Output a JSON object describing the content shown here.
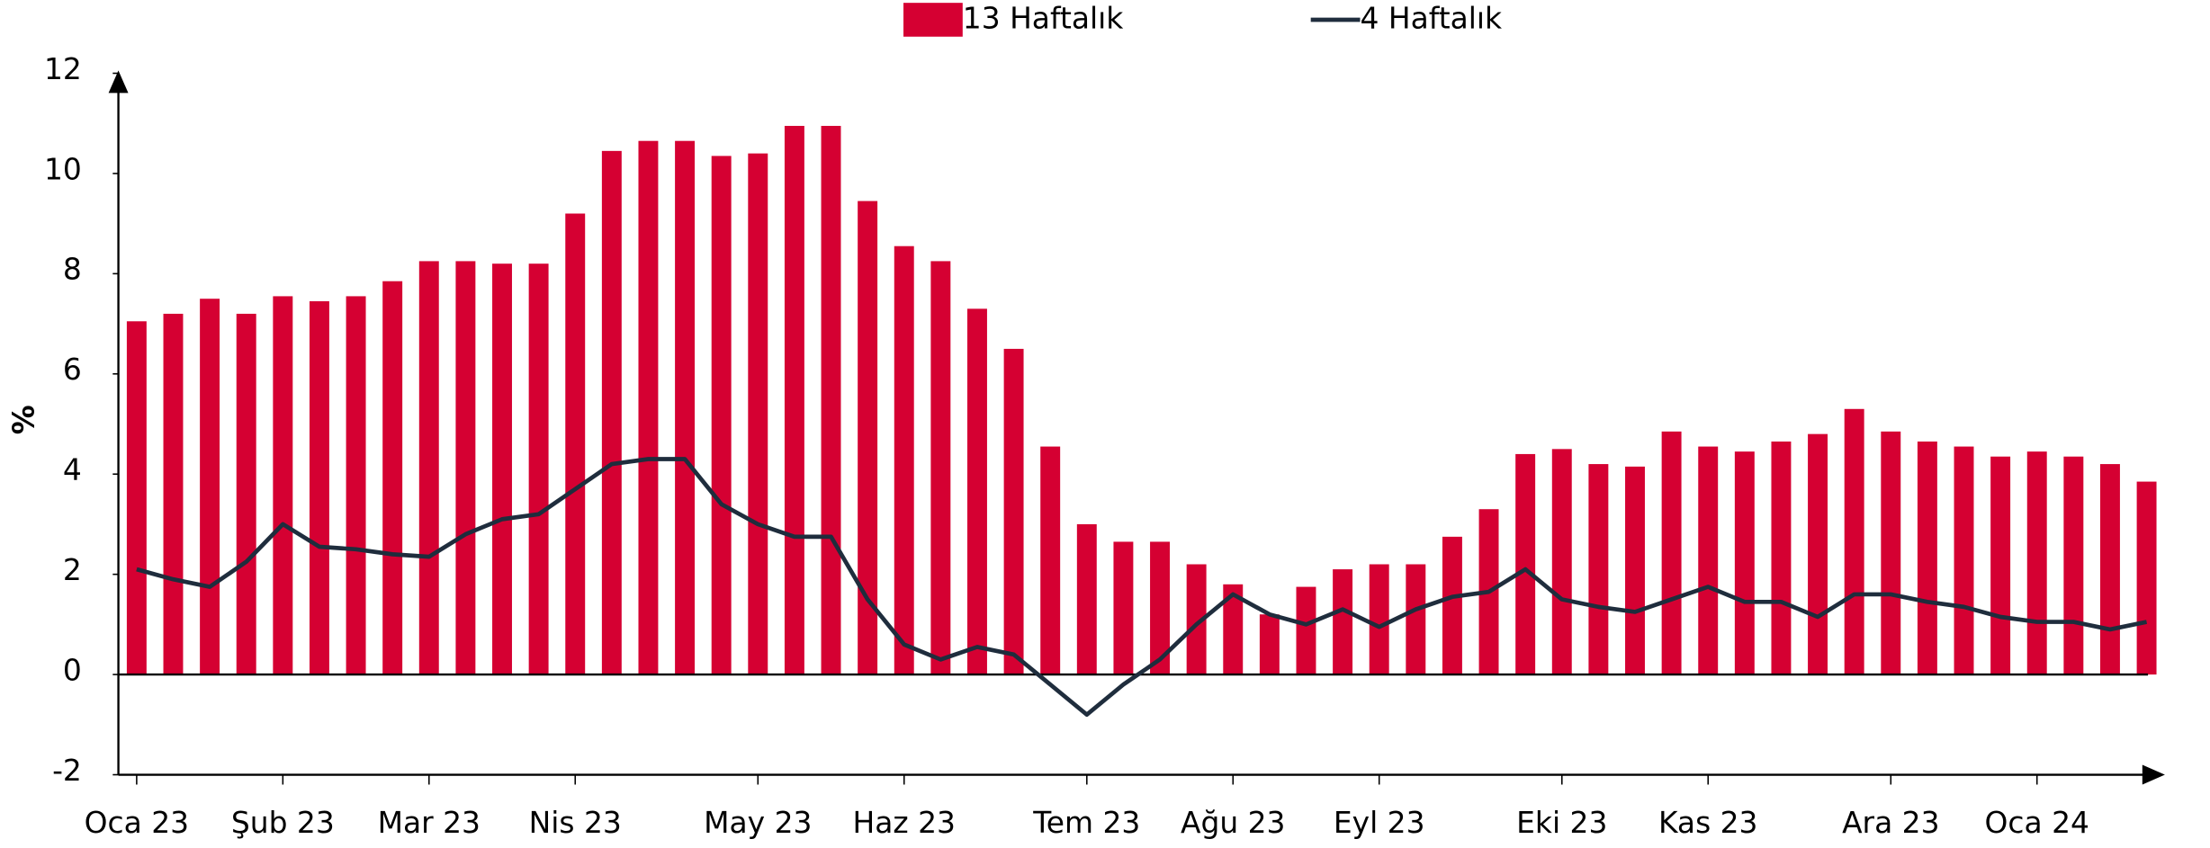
{
  "chart_data": {
    "type": "bar_line",
    "y_label": "%",
    "categories": [
      "Oca 23",
      null,
      null,
      null,
      "Şub 23",
      null,
      null,
      null,
      "Mar 23",
      null,
      null,
      null,
      "Nis 23",
      null,
      null,
      null,
      null,
      "May 23",
      null,
      null,
      null,
      "Haz 23",
      null,
      null,
      null,
      null,
      "Tem 23",
      null,
      null,
      null,
      "Ağu 23",
      null,
      null,
      null,
      "Eyl 23",
      null,
      null,
      null,
      null,
      "Eki 23",
      null,
      null,
      null,
      "Kas 23",
      null,
      null,
      null,
      null,
      "Ara 23",
      null,
      null,
      null,
      "Oca 24",
      null,
      null,
      null
    ],
    "series": [
      {
        "name": "13 Haftalık",
        "kind": "bar",
        "color": "#d50032",
        "values": [
          7.05,
          7.2,
          7.5,
          7.2,
          7.55,
          7.45,
          7.55,
          7.85,
          8.25,
          8.25,
          8.2,
          8.2,
          9.2,
          10.45,
          10.65,
          10.65,
          10.35,
          10.4,
          10.95,
          10.95,
          9.45,
          8.55,
          8.25,
          7.3,
          6.5,
          4.55,
          3.0,
          2.65,
          2.65,
          2.2,
          1.8,
          1.2,
          1.75,
          2.1,
          2.2,
          2.2,
          2.75,
          3.3,
          4.4,
          4.5,
          4.2,
          4.15,
          4.85,
          4.55,
          4.45,
          4.65,
          4.8,
          5.3,
          4.85,
          4.65,
          4.55,
          4.35,
          4.45,
          4.35,
          4.2,
          3.85
        ]
      },
      {
        "name": "4 Haftalık",
        "kind": "line",
        "color": "#1f2d3d",
        "values": [
          2.1,
          1.9,
          1.75,
          2.25,
          3.0,
          2.55,
          2.5,
          2.4,
          2.35,
          2.8,
          3.1,
          3.2,
          3.7,
          4.2,
          4.3,
          4.3,
          3.4,
          3.0,
          2.75,
          2.75,
          1.5,
          0.6,
          0.3,
          0.55,
          0.4,
          -0.2,
          -0.8,
          -0.2,
          0.3,
          1.0,
          1.6,
          1.2,
          1.0,
          1.3,
          0.95,
          1.3,
          1.55,
          1.65,
          2.1,
          1.5,
          1.35,
          1.25,
          1.5,
          1.75,
          1.45,
          1.45,
          1.15,
          1.6,
          1.6,
          1.45,
          1.35,
          1.15,
          1.05,
          1.05,
          0.9,
          1.05
        ]
      }
    ],
    "ylim": [
      -2,
      12
    ],
    "yticks": [
      -2,
      0,
      2,
      4,
      6,
      8,
      10,
      12
    ],
    "legend": "top"
  }
}
